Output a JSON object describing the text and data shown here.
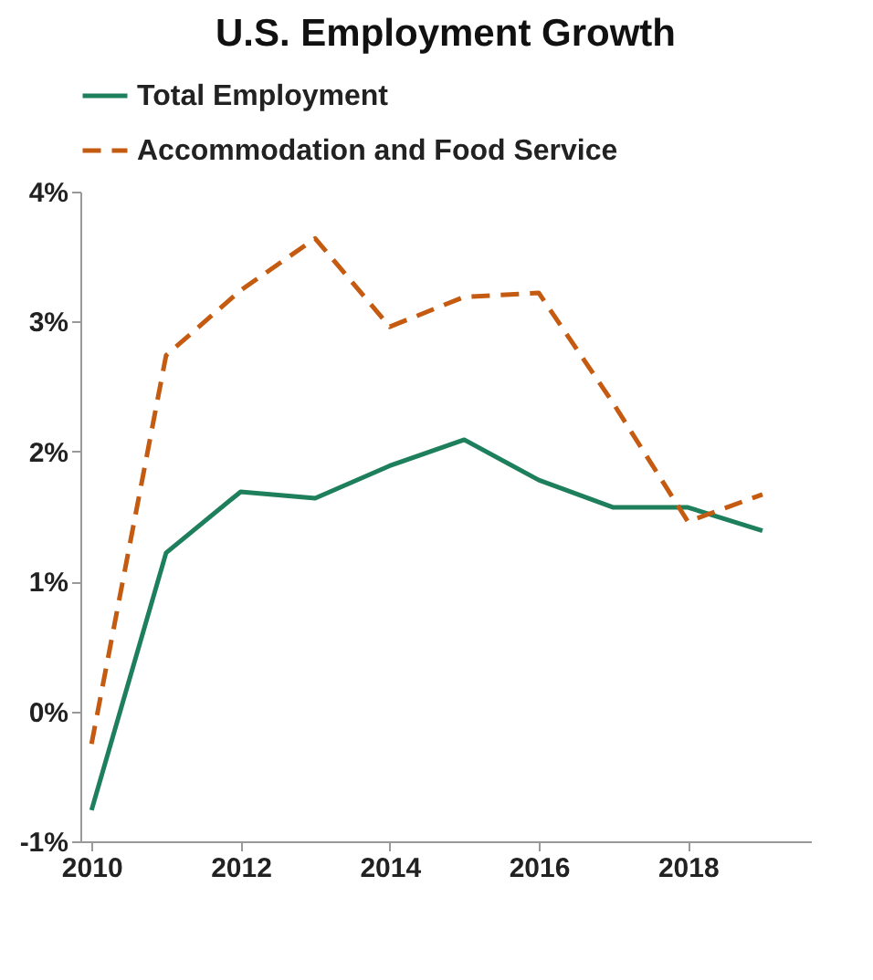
{
  "chart_data": {
    "type": "line",
    "title": "U.S. Employment Growth",
    "x": [
      2010,
      2011,
      2012,
      2013,
      2014,
      2015,
      2016,
      2017,
      2018,
      2019
    ],
    "series": [
      {
        "name": "Total Employment",
        "color": "#1e7f5c",
        "line_style": "solid",
        "values": [
          -0.76,
          1.22,
          1.69,
          1.64,
          1.89,
          2.09,
          1.78,
          1.57,
          1.57,
          1.39
        ]
      },
      {
        "name": "Accommodation and Food Service",
        "color": "#c55a11",
        "line_style": "dashed",
        "values": [
          -0.25,
          2.74,
          3.24,
          3.64,
          2.96,
          3.19,
          3.22,
          2.37,
          1.46,
          1.67
        ]
      }
    ],
    "xlim": [
      2009.85,
      2019.65
    ],
    "xticks": [
      2010,
      2012,
      2014,
      2016,
      2018
    ],
    "ylim": [
      -1,
      4
    ],
    "yticks": [
      {
        "value": -1,
        "label": "-1%"
      },
      {
        "value": 0,
        "label": "0%"
      },
      {
        "value": 1,
        "label": "1%"
      },
      {
        "value": 2,
        "label": "2%"
      },
      {
        "value": 3,
        "label": "3%"
      },
      {
        "value": 4,
        "label": "4%"
      }
    ],
    "grid": false,
    "legend": "top left",
    "marker": "none"
  }
}
